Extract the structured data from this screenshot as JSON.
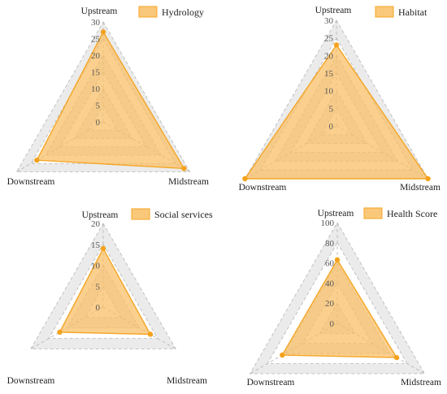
{
  "style": {
    "fill_color": "#F9BE63",
    "fill_opacity": 0.72,
    "stroke_color": "#F4A524",
    "point_color": "#F4A21C",
    "grid_band_color": "#EBEBEB",
    "grid_line_color": "#B5B5B5"
  },
  "chart_data": [
    {
      "type": "radar",
      "axes": [
        "Upstream",
        "Midstream",
        "Downstream"
      ],
      "series": [
        {
          "name": "Hydrology",
          "values": [
            27,
            28,
            23
          ]
        }
      ],
      "rlim": [
        0,
        30
      ],
      "ticks": [
        0,
        5,
        10,
        15,
        20,
        25,
        30
      ],
      "tick_labels": [
        "0",
        "5",
        "10",
        "15",
        "20",
        "25",
        "30"
      ],
      "grid": true,
      "legend_position": "top-right"
    },
    {
      "type": "radar",
      "axes": [
        "Upstream",
        "Midstream",
        "Downstream"
      ],
      "series": [
        {
          "name": "Habitat",
          "values": [
            23,
            30,
            30
          ]
        }
      ],
      "rlim": [
        0,
        30
      ],
      "ticks": [
        0,
        5,
        10,
        15,
        20,
        25,
        30
      ],
      "tick_labels": [
        "0",
        "5",
        "10",
        "15",
        "20",
        "25",
        "30"
      ],
      "grid": true,
      "legend_position": "top-right"
    },
    {
      "type": "radar",
      "axes": [
        "Upstream",
        "Midstream",
        "Downstream"
      ],
      "series": [
        {
          "name": "Social services",
          "values": [
            14,
            13,
            12
          ]
        }
      ],
      "rlim": [
        0,
        20
      ],
      "ticks": [
        0,
        5,
        10,
        15,
        20
      ],
      "tick_labels": [
        "0",
        "5",
        "10",
        "15",
        "20"
      ],
      "grid": true,
      "legend_position": "top-right"
    },
    {
      "type": "radar",
      "axes": [
        "Upstream",
        "Midstream",
        "Downstream"
      ],
      "series": [
        {
          "name": "Health Score",
          "values": [
            63,
            68,
            63
          ]
        }
      ],
      "rlim": [
        0,
        100
      ],
      "ticks": [
        0,
        20,
        40,
        60,
        80,
        100
      ],
      "tick_labels": [
        "0",
        "20",
        "40",
        "60",
        "80",
        "100"
      ],
      "grid": true,
      "legend_position": "top-right"
    }
  ]
}
